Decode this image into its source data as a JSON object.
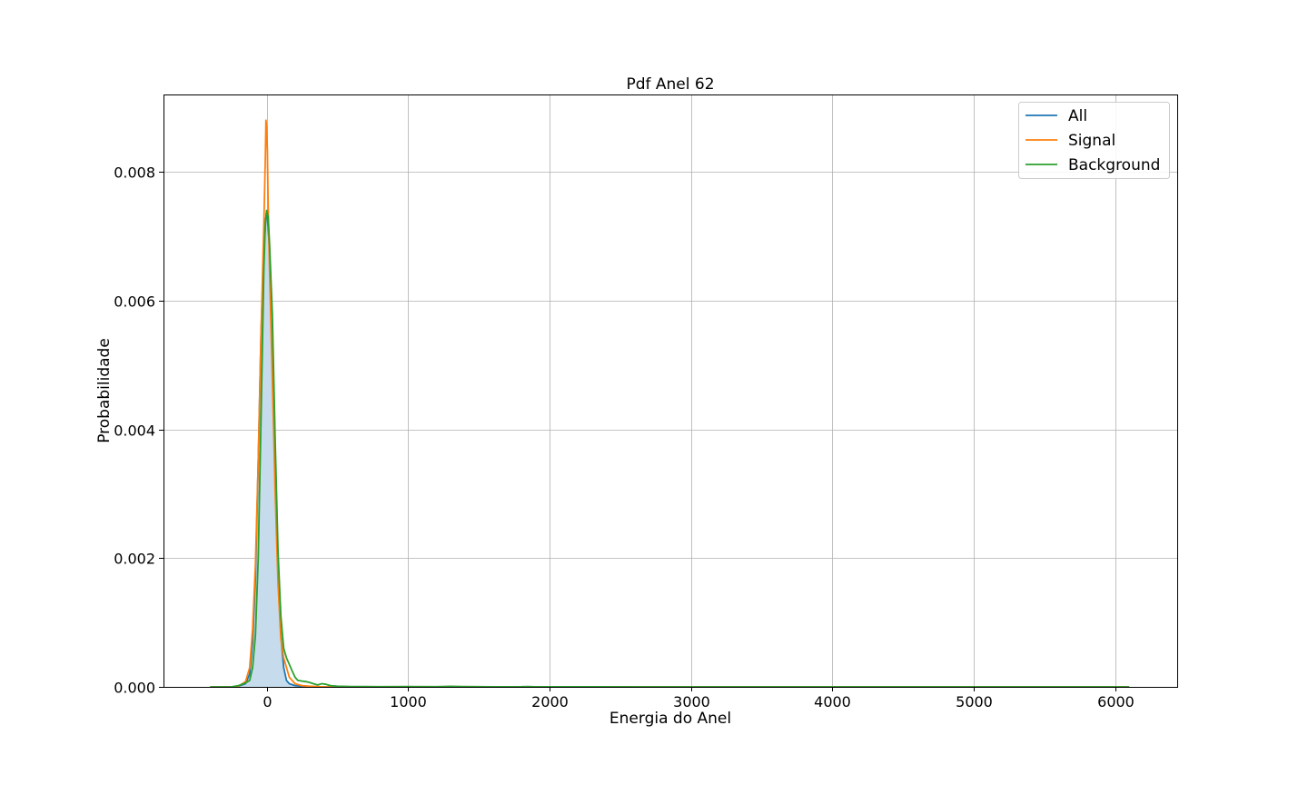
{
  "chart_data": {
    "type": "line",
    "title": "Pdf Anel 62",
    "xlabel": "Energia do Anel",
    "ylabel": "Probabilidade",
    "xlim": [
      -730,
      6440
    ],
    "ylim": [
      0,
      0.0092
    ],
    "xticks": [
      0,
      1000,
      2000,
      3000,
      4000,
      5000,
      6000
    ],
    "xtick_labels": [
      "0",
      "1000",
      "2000",
      "3000",
      "4000",
      "5000",
      "6000"
    ],
    "yticks": [
      0,
      0.002,
      0.004,
      0.006,
      0.008
    ],
    "ytick_labels": [
      "0.000",
      "0.002",
      "0.004",
      "0.006",
      "0.008"
    ],
    "grid": true,
    "legend_position": "top-right",
    "series": [
      {
        "name": "All",
        "color": "#1f77b4",
        "filled": true,
        "fill_color": "#c6dbec",
        "x": [
          -400,
          -250,
          -200,
          -150,
          -120,
          -100,
          -80,
          -60,
          -40,
          -20,
          -5,
          0,
          5,
          20,
          40,
          60,
          80,
          100,
          120,
          140,
          160,
          200,
          250,
          300,
          400,
          600,
          1000,
          2000,
          4000,
          6100
        ],
        "y": [
          0,
          0,
          1e-05,
          5e-05,
          0.0002,
          0.0007,
          0.0017,
          0.0035,
          0.0055,
          0.0068,
          0.0073,
          0.0074,
          0.0073,
          0.0068,
          0.0055,
          0.0035,
          0.0018,
          0.0008,
          0.0003,
          0.0001,
          5e-05,
          2e-05,
          1e-05,
          5e-06,
          0,
          0,
          0,
          0,
          0,
          0
        ]
      },
      {
        "name": "Signal",
        "color": "#ff7f0e",
        "filled": false,
        "x": [
          -400,
          -250,
          -200,
          -150,
          -120,
          -100,
          -80,
          -60,
          -40,
          -20,
          -10,
          -5,
          0,
          5,
          10,
          20,
          40,
          60,
          80,
          100,
          120,
          160,
          200,
          250,
          300,
          400,
          600,
          1000,
          2000,
          4000,
          6100
        ],
        "y": [
          0,
          0,
          1e-05,
          8e-05,
          0.0003,
          0.0009,
          0.0019,
          0.0035,
          0.0055,
          0.0072,
          0.0082,
          0.0088,
          0.0087,
          0.0083,
          0.0075,
          0.0065,
          0.0048,
          0.003,
          0.0016,
          0.00075,
          0.00045,
          0.00015,
          5e-05,
          2e-05,
          1e-05,
          0,
          0,
          0,
          0,
          0,
          0
        ]
      },
      {
        "name": "Background",
        "color": "#2ca02c",
        "filled": false,
        "x": [
          -400,
          -250,
          -200,
          -150,
          -120,
          -100,
          -80,
          -60,
          -40,
          -20,
          -10,
          0,
          10,
          20,
          40,
          60,
          80,
          100,
          120,
          140,
          160,
          180,
          200,
          220,
          250,
          280,
          300,
          330,
          360,
          390,
          420,
          450,
          500,
          600,
          700,
          800,
          1000,
          1200,
          1300,
          1400,
          1600,
          1800,
          1850,
          1900,
          2000,
          3000,
          4000,
          5000,
          6100
        ],
        "y": [
          0,
          0,
          2e-05,
          6e-05,
          0.0001,
          0.0003,
          0.0008,
          0.002,
          0.0042,
          0.0065,
          0.0072,
          0.0074,
          0.0073,
          0.0069,
          0.0058,
          0.0038,
          0.0021,
          0.0011,
          0.0006,
          0.00045,
          0.00035,
          0.00025,
          0.00015,
          0.0001,
          9e-05,
          8e-05,
          7e-05,
          5e-05,
          3e-05,
          5e-05,
          4e-05,
          2e-05,
          1e-05,
          5e-06,
          5e-06,
          3e-06,
          5e-06,
          3e-06,
          8e-06,
          4e-06,
          2e-06,
          3e-06,
          6e-06,
          2e-06,
          1e-06,
          0,
          0,
          0,
          0
        ]
      }
    ]
  }
}
